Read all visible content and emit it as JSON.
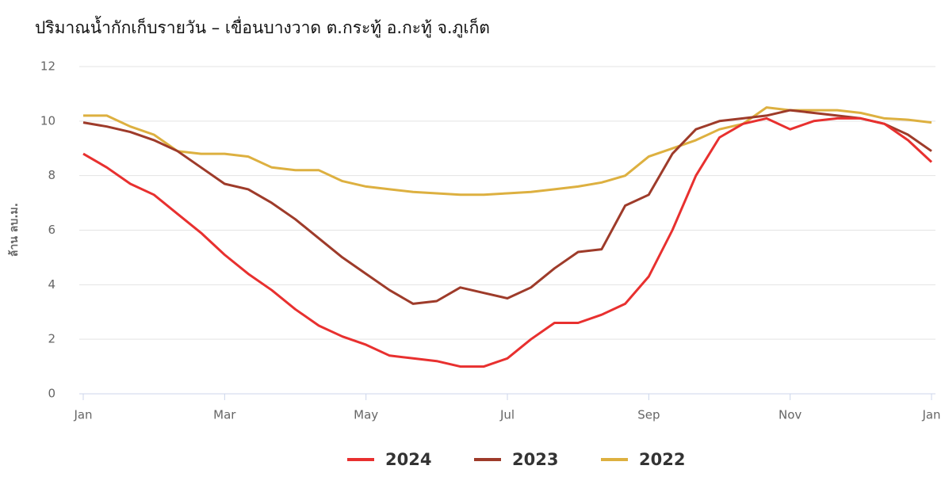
{
  "chart_data": {
    "type": "line",
    "title": "ปริมาณน้ำกักเก็บรายวัน – เขื่อนบางวาด ต.กระทู้ อ.กะทู้ จ.ภูเก็ต",
    "y_label": "ล้าน ลบ.ม.",
    "categories": [
      "Jan",
      null,
      null,
      null,
      null,
      null,
      "Mar",
      null,
      null,
      null,
      null,
      null,
      "May",
      null,
      null,
      null,
      null,
      null,
      "Jul",
      null,
      null,
      null,
      null,
      null,
      "Sep",
      null,
      null,
      null,
      null,
      null,
      "Nov",
      null,
      null,
      null,
      null,
      null,
      "Jan"
    ],
    "series": [
      {
        "name": "2024",
        "color": "#e8302f",
        "values": [
          8.8,
          8.3,
          7.7,
          7.3,
          6.6,
          5.9,
          5.1,
          4.4,
          3.8,
          3.1,
          2.5,
          2.1,
          1.8,
          1.4,
          1.3,
          1.2,
          1.0,
          1.0,
          1.3,
          2.0,
          2.6,
          2.6,
          2.9,
          3.3,
          4.3,
          6.0,
          8.0,
          9.4,
          9.9,
          10.1,
          9.7,
          10.0,
          10.1,
          10.1,
          9.9,
          9.3,
          8.5
        ]
      },
      {
        "name": "2023",
        "color": "#9e3b2a",
        "values": [
          9.95,
          9.8,
          9.6,
          9.3,
          8.9,
          8.3,
          7.7,
          7.5,
          7.0,
          6.4,
          5.7,
          5.0,
          4.4,
          3.8,
          3.3,
          3.4,
          3.9,
          3.7,
          3.5,
          3.9,
          4.6,
          5.2,
          5.3,
          6.9,
          7.3,
          8.8,
          9.7,
          10.0,
          10.1,
          10.2,
          10.4,
          10.3,
          10.2,
          10.1,
          9.9,
          9.5,
          8.9
        ]
      },
      {
        "name": "2022",
        "color": "#ddb040",
        "values": [
          10.2,
          10.2,
          9.8,
          9.5,
          8.9,
          8.8,
          8.8,
          8.7,
          8.3,
          8.2,
          8.2,
          7.8,
          7.6,
          7.5,
          7.4,
          7.35,
          7.3,
          7.3,
          7.35,
          7.4,
          7.5,
          7.6,
          7.75,
          8.0,
          8.7,
          9.0,
          9.3,
          9.7,
          9.9,
          10.5,
          10.4,
          10.4,
          10.4,
          10.3,
          10.1,
          10.05,
          9.95
        ]
      }
    ],
    "ylim": [
      0,
      12
    ],
    "yticks": [
      0,
      2,
      4,
      6,
      8,
      10,
      12
    ],
    "grid": true,
    "legend": "bottom"
  }
}
